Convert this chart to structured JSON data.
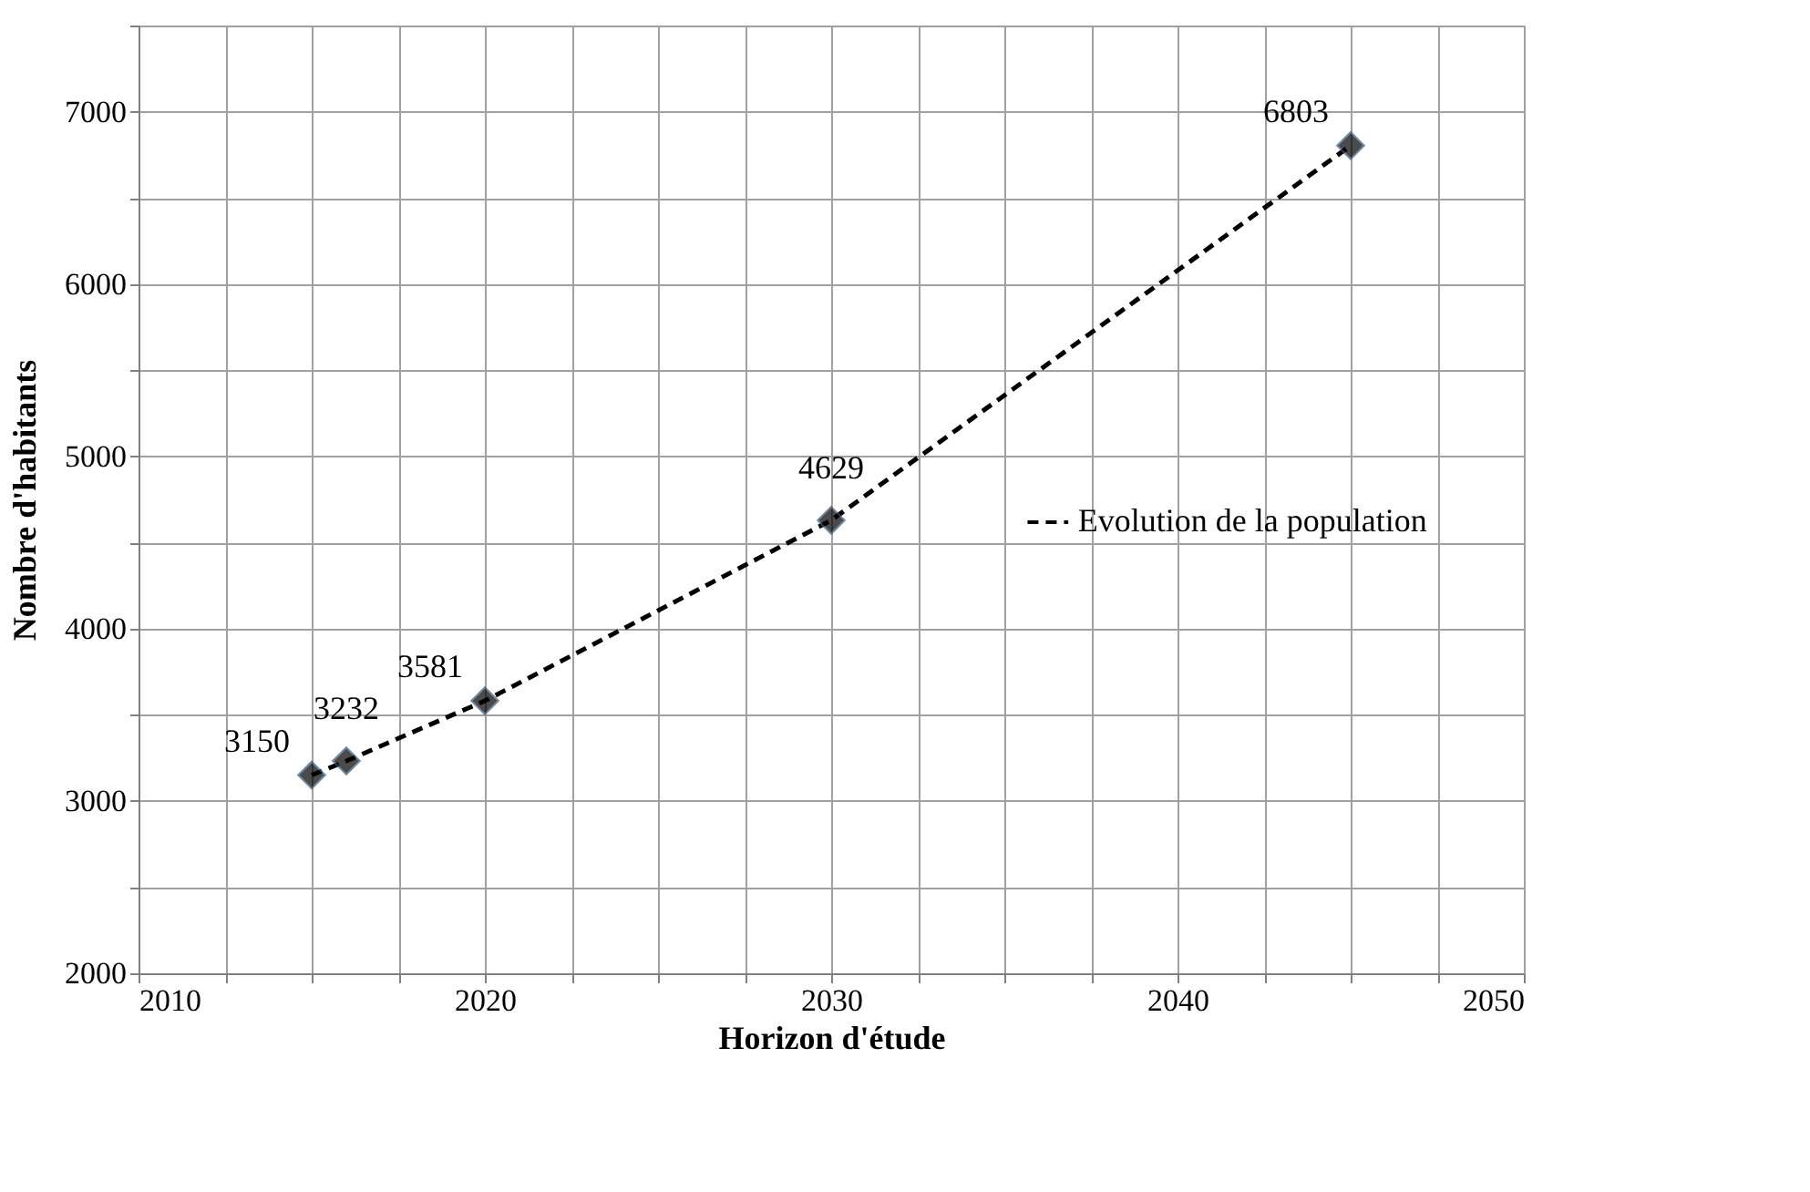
{
  "chart_data": {
    "type": "line",
    "xlabel": "Horizon d'étude",
    "ylabel": "Nombre d'habitants",
    "x": [
      2015,
      2016,
      2020,
      2030,
      2045
    ],
    "series": [
      {
        "name": "Evolution de la population",
        "color": "#000000",
        "values": [
          3150,
          3232,
          3581,
          4629,
          6803
        ]
      }
    ],
    "xlim": [
      2010,
      2050
    ],
    "xticks": [
      2010,
      {
        "value": 2012.5,
        "label": null
      },
      {
        "value": 2015,
        "label": null
      },
      {
        "value": 2017.5,
        "label": null
      },
      2020,
      {
        "value": 2022.5,
        "label": null
      },
      {
        "value": 2025,
        "label": null
      },
      {
        "value": 2027.5,
        "label": null
      },
      2030,
      {
        "value": 2032.5,
        "label": null
      },
      {
        "value": 2035,
        "label": null
      },
      {
        "value": 2037.5,
        "label": null
      },
      2040,
      {
        "value": 2042.5,
        "label": null
      },
      {
        "value": 2045,
        "label": null
      },
      {
        "value": 2047.5,
        "label": null
      },
      2050
    ],
    "ylim": [
      2000,
      7500
    ],
    "yticks": [
      2000,
      {
        "value": 2500,
        "label": null
      },
      3000,
      {
        "value": 3500,
        "label": null
      },
      4000,
      {
        "value": 4500,
        "label": null
      },
      5000,
      {
        "value": 5500,
        "label": null
      },
      6000,
      {
        "value": 6500,
        "label": null
      },
      7000,
      {
        "value": 7500,
        "label": null
      }
    ],
    "grid": true,
    "legend": "right",
    "marker": "diamond",
    "line_style": "dashed",
    "data_labels": true
  }
}
